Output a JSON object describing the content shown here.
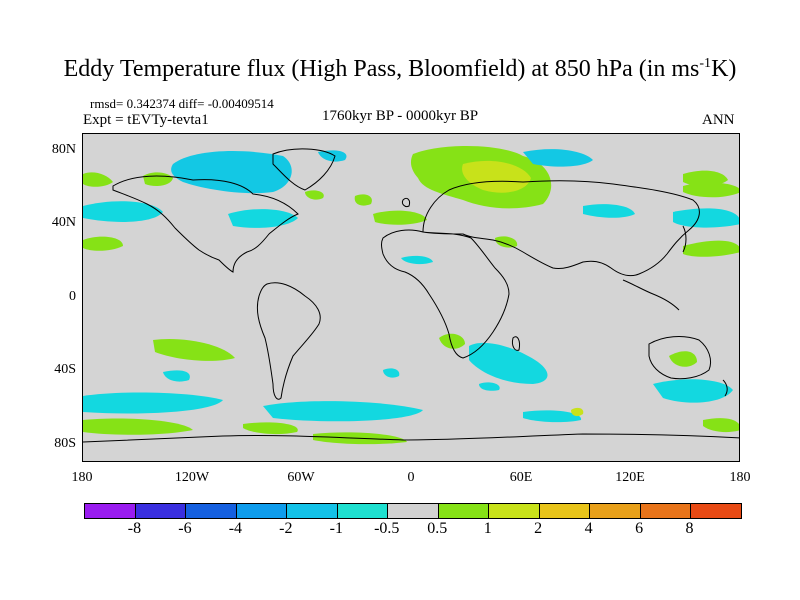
{
  "title": {
    "main": "Eddy Temperature flux (High Pass, Bloomfield) at 850 hPa (in ms",
    "sup": "-1",
    "tail": "K)"
  },
  "stats": "rmsd= 0.342374 diff= -0.00409514",
  "experiment": "Expt = tEVTy-tevta1",
  "period": "1760kyr BP - 0000kyr BP",
  "season": "ANN",
  "lat_labels": [
    "80N",
    "40N",
    "0",
    "40S",
    "80S"
  ],
  "lon_labels": [
    "180",
    "120W",
    "60W",
    "0",
    "60E",
    "120E",
    "180"
  ],
  "colorbar": {
    "colors": [
      "#9a1cf0",
      "#3a2fe0",
      "#1560e0",
      "#0e9cec",
      "#13c2e8",
      "#1ee0d0",
      "#d2d2d2",
      "#86e216",
      "#c8e21a",
      "#e8c41a",
      "#e8a01a",
      "#e8741a",
      "#e84a14"
    ],
    "labels": [
      "-8",
      "-6",
      "-4",
      "-2",
      "-1",
      "-0.5",
      "0.5",
      "1",
      "2",
      "4",
      "6",
      "8"
    ]
  },
  "colors": {
    "ocean_land_background": "#d4d4d4",
    "positive_green": "#86e216",
    "positive_yellow": "#c8e21a",
    "negative_cyan": "#13d8e0",
    "negative_blue": "#0eb4ec"
  }
}
